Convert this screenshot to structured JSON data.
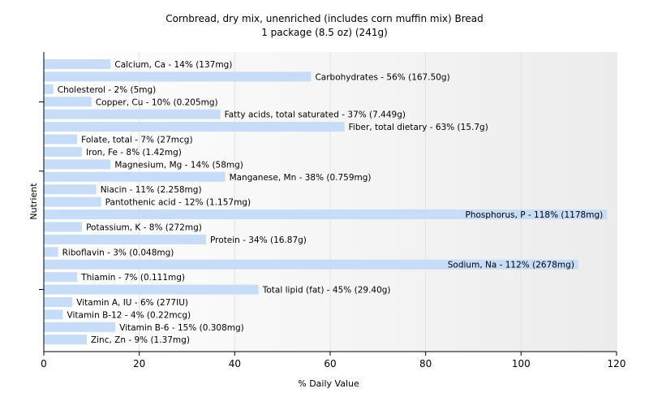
{
  "chart_data": {
    "type": "bar",
    "orientation": "horizontal",
    "title": "Cornbread, dry mix, unenriched (includes corn muffin mix) Bread",
    "subtitle": "1 package (8.5 oz) (241g)",
    "xlabel": "% Daily Value",
    "ylabel": "Nutrient",
    "xlim": [
      0,
      120
    ],
    "xticks": [
      "0",
      "20",
      "40",
      "60",
      "80",
      "100",
      "120"
    ],
    "bar_color": "#c6dcf7",
    "grid": "vertical-light",
    "categories": [
      "Calcium, Ca",
      "Carbohydrates",
      "Cholesterol",
      "Copper, Cu",
      "Fatty acids, total saturated",
      "Fiber, total dietary",
      "Folate, total",
      "Iron, Fe",
      "Magnesium, Mg",
      "Manganese, Mn",
      "Niacin",
      "Pantothenic acid",
      "Phosphorus, P",
      "Potassium, K",
      "Protein",
      "Riboflavin",
      "Sodium, Na",
      "Thiamin",
      "Total lipid (fat)",
      "Vitamin A, IU",
      "Vitamin B-12",
      "Vitamin B-6",
      "Zinc, Zn"
    ],
    "values": [
      14,
      56,
      2,
      10,
      37,
      63,
      7,
      8,
      14,
      38,
      11,
      12,
      118,
      8,
      34,
      3,
      112,
      7,
      45,
      6,
      4,
      15,
      9
    ],
    "labels": [
      "Calcium, Ca - 14% (137mg)",
      "Carbohydrates - 56% (167.50g)",
      "Cholesterol - 2% (5mg)",
      "Copper, Cu - 10% (0.205mg)",
      "Fatty acids, total saturated - 37% (7.449g)",
      "Fiber, total dietary - 63% (15.7g)",
      "Folate, total - 7% (27mcg)",
      "Iron, Fe - 8% (1.42mg)",
      "Magnesium, Mg - 14% (58mg)",
      "Manganese, Mn - 38% (0.759mg)",
      "Niacin - 11% (2.258mg)",
      "Pantothenic acid - 12% (1.157mg)",
      "Phosphorus, P - 118% (1178mg)",
      "Potassium, K - 8% (272mg)",
      "Protein - 34% (16.87g)",
      "Riboflavin - 3% (0.048mg)",
      "Sodium, Na - 112% (2678mg)",
      "Thiamin - 7% (0.111mg)",
      "Total lipid (fat) - 45% (29.40g)",
      "Vitamin A, IU - 6% (277IU)",
      "Vitamin B-12 - 4% (0.22mcg)",
      "Vitamin B-6 - 15% (0.308mg)",
      "Zinc, Zn - 9% (1.37mg)"
    ]
  }
}
